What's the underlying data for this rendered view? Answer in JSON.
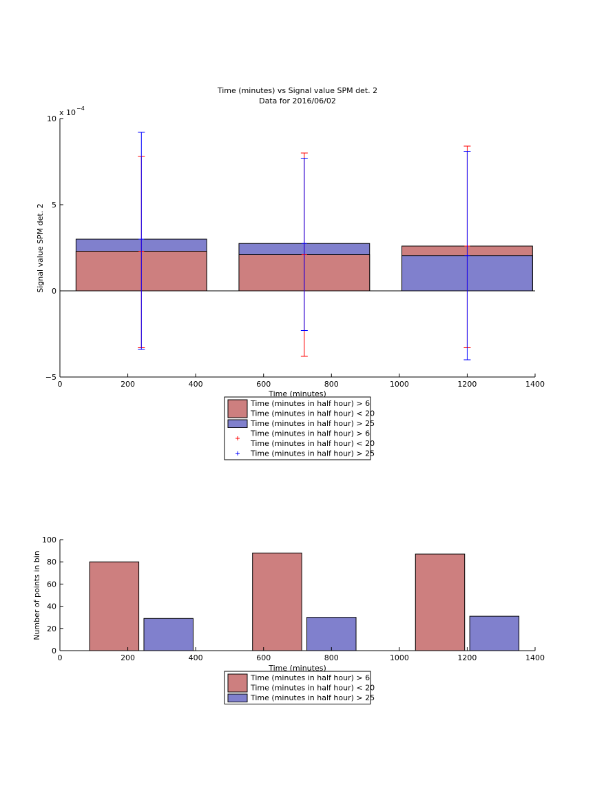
{
  "chart_data": [
    {
      "type": "bar",
      "title": "Time (minutes) vs Signal value SPM det. 2",
      "subtitle": "Data for 2016/06/02",
      "xlabel": "Time (minutes)",
      "ylabel": "Signal value SPM det. 2",
      "exponent_label": "x 10",
      "exponent_power": "−4",
      "xlim": [
        0,
        1400
      ],
      "ylim": [
        -5,
        10
      ],
      "xticks": [
        "0",
        "200",
        "400",
        "600",
        "800",
        "1000",
        "1200",
        "1400"
      ],
      "yticks": [
        "−5",
        "0",
        "5",
        "10"
      ],
      "ytick_values": [
        -5,
        0,
        5,
        10
      ],
      "xtick_values": [
        0,
        200,
        400,
        600,
        800,
        1000,
        1200,
        1400
      ],
      "bar_width": 385,
      "x": [
        240,
        720,
        1200
      ],
      "series": [
        {
          "name": "Time (minutes in half hour) > 6\nTime (minutes in half hour) < 20",
          "color": "#cd7f7f",
          "values": [
            2.3,
            2.1,
            2.6
          ]
        },
        {
          "name": "Time (minutes in half hour) > 25",
          "color": "#8080cd",
          "values": [
            3.0,
            2.75,
            2.05
          ]
        }
      ],
      "errorbars": [
        {
          "series": 0,
          "color": "#ff0000",
          "lower": [
            -3.3,
            -3.8,
            -3.3
          ],
          "upper": [
            7.8,
            8.0,
            8.4
          ]
        },
        {
          "series": 1,
          "color": "#0000ff",
          "lower": [
            -3.4,
            -2.3,
            -4.0
          ],
          "upper": [
            9.2,
            7.7,
            8.1
          ]
        }
      ],
      "legend": {
        "placement": "below",
        "entries": [
          {
            "kind": "patch",
            "color": "#cd7f7f",
            "lines": [
              "Time (minutes in half hour) > 6",
              "Time (minutes in half hour) < 20"
            ]
          },
          {
            "kind": "patch",
            "color": "#8080cd",
            "lines": [
              "Time (minutes in half hour) > 25"
            ]
          },
          {
            "kind": "marker",
            "color": "#ff0000",
            "lines": [
              "Time (minutes in half hour) > 6",
              "Time (minutes in half hour) < 20"
            ]
          },
          {
            "kind": "marker",
            "color": "#0000ff",
            "lines": [
              "Time (minutes in half hour) > 25"
            ]
          }
        ]
      }
    },
    {
      "type": "bar",
      "title": "",
      "xlabel": "Time (minutes)",
      "ylabel": "Number of points in bin",
      "xlim": [
        0,
        1400
      ],
      "ylim": [
        0,
        100
      ],
      "xticks": [
        "0",
        "200",
        "400",
        "600",
        "800",
        "1000",
        "1200",
        "1400"
      ],
      "yticks": [
        "0",
        "20",
        "40",
        "60",
        "80",
        "100"
      ],
      "ytick_values": [
        0,
        20,
        40,
        60,
        80,
        100
      ],
      "xtick_values": [
        0,
        200,
        400,
        600,
        800,
        1000,
        1200,
        1400
      ],
      "bar_width": 145,
      "series": [
        {
          "name": "Time (minutes in half hour) > 6\nTime (minutes in half hour) < 20",
          "color": "#cd7f7f",
          "x": [
            160,
            640,
            1120
          ],
          "values": [
            80,
            88,
            87
          ]
        },
        {
          "name": "Time (minutes in half hour) > 25",
          "color": "#8080cd",
          "x": [
            320,
            800,
            1280
          ],
          "values": [
            29,
            30,
            31
          ]
        }
      ],
      "legend": {
        "placement": "below",
        "entries": [
          {
            "kind": "patch",
            "color": "#cd7f7f",
            "lines": [
              "Time (minutes in half hour) > 6",
              "Time (minutes in half hour) < 20"
            ]
          },
          {
            "kind": "patch",
            "color": "#8080cd",
            "lines": [
              "Time (minutes in half hour) > 25"
            ]
          }
        ]
      }
    }
  ]
}
